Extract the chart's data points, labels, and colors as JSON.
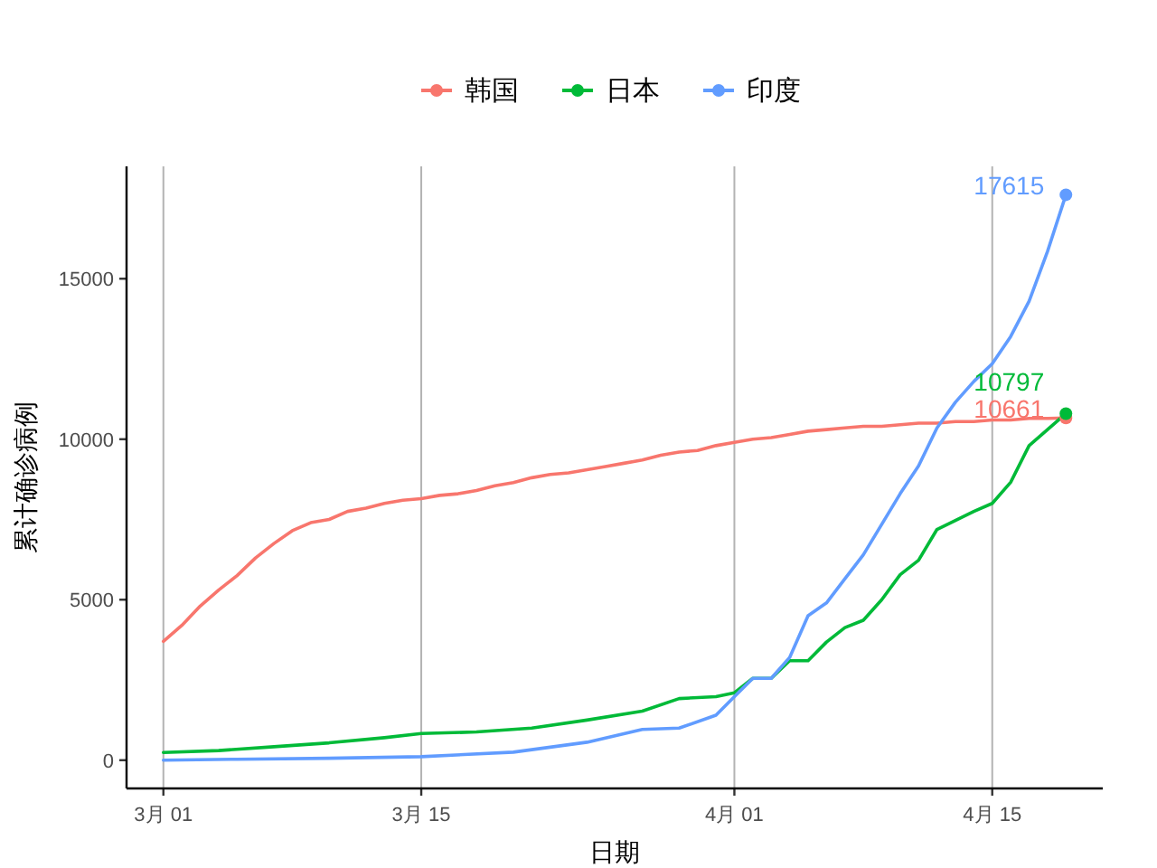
{
  "chart_data": {
    "type": "line",
    "xlabel": "日期",
    "ylabel": "累计确诊病例",
    "legend": "top",
    "grid": "x",
    "xlim": [
      "--02-27",
      "--04-21"
    ],
    "ylim": [
      -880,
      18500
    ],
    "xticks": [
      {
        "value": "--03-01",
        "label": "3月 01"
      },
      {
        "value": "--03-15",
        "label": "3月 15"
      },
      {
        "value": "--04-01",
        "label": "4月 01"
      },
      {
        "value": "--04-15",
        "label": "4月 15"
      }
    ],
    "yticks": [
      0,
      5000,
      10000,
      15000
    ],
    "series": [
      {
        "name": "韩国",
        "color": "#f8766d",
        "x": [
          "--03-01",
          "--03-02",
          "--03-03",
          "--03-04",
          "--03-05",
          "--03-06",
          "--03-07",
          "--03-08",
          "--03-09",
          "--03-10",
          "--03-11",
          "--03-12",
          "--03-13",
          "--03-14",
          "--03-15",
          "--03-16",
          "--03-17",
          "--03-18",
          "--03-19",
          "--03-20",
          "--03-21",
          "--03-22",
          "--03-23",
          "--03-24",
          "--03-25",
          "--03-26",
          "--03-27",
          "--03-28",
          "--03-29",
          "--03-30",
          "--03-31",
          "--04-01",
          "--04-02",
          "--04-03",
          "--04-04",
          "--04-05",
          "--04-06",
          "--04-07",
          "--04-08",
          "--04-09",
          "--04-10",
          "--04-11",
          "--04-12",
          "--04-13",
          "--04-14",
          "--04-15",
          "--04-16",
          "--04-17",
          "--04-18",
          "--04-19"
        ],
        "values": [
          3700,
          4200,
          4800,
          5300,
          5750,
          6300,
          6750,
          7150,
          7400,
          7500,
          7750,
          7850,
          8000,
          8100,
          8150,
          8250,
          8300,
          8400,
          8550,
          8650,
          8800,
          8900,
          8950,
          9050,
          9150,
          9250,
          9350,
          9500,
          9600,
          9650,
          9800,
          9900,
          10000,
          10050,
          10150,
          10250,
          10300,
          10350,
          10400,
          10400,
          10450,
          10500,
          10500,
          10550,
          10550,
          10600,
          10600,
          10650,
          10650,
          10661
        ],
        "value_labels": [
          null,
          null,
          null,
          null,
          null,
          null,
          null,
          null,
          null,
          null,
          null,
          null,
          null,
          null,
          null,
          null,
          null,
          null,
          null,
          null,
          null,
          null,
          null,
          null,
          null,
          null,
          null,
          null,
          null,
          null,
          null,
          null,
          null,
          null,
          null,
          null,
          null,
          null,
          null,
          null,
          null,
          null,
          null,
          null,
          null,
          null,
          null,
          null,
          null,
          "10661"
        ]
      },
      {
        "name": "日本",
        "color": "#00ba38",
        "x": [
          "--03-01",
          "--03-04",
          "--03-07",
          "--03-10",
          "--03-13",
          "--03-15",
          "--03-18",
          "--03-21",
          "--03-24",
          "--03-27",
          "--03-29",
          "--03-31",
          "--04-01",
          "--04-02",
          "--04-03",
          "--04-04",
          "--04-05",
          "--04-06",
          "--04-07",
          "--04-08",
          "--04-09",
          "--04-10",
          "--04-11",
          "--04-12",
          "--04-13",
          "--04-14",
          "--04-15",
          "--04-16",
          "--04-17",
          "--04-18",
          "--04-19"
        ],
        "values": [
          240,
          300,
          420,
          540,
          700,
          830,
          880,
          1000,
          1250,
          1530,
          1920,
          1980,
          2100,
          2550,
          2550,
          3100,
          3100,
          3680,
          4130,
          4360,
          5000,
          5780,
          6230,
          7190,
          7470,
          7750,
          8000,
          8660,
          9800,
          10300,
          10797
        ],
        "value_labels": [
          null,
          null,
          null,
          null,
          null,
          null,
          null,
          null,
          null,
          null,
          null,
          null,
          null,
          null,
          null,
          null,
          null,
          null,
          null,
          null,
          null,
          null,
          null,
          null,
          null,
          null,
          null,
          null,
          null,
          null,
          "10797"
        ]
      },
      {
        "name": "印度",
        "color": "#619cff",
        "x": [
          "--03-01",
          "--03-05",
          "--03-10",
          "--03-15",
          "--03-20",
          "--03-24",
          "--03-27",
          "--03-29",
          "--03-31",
          "--04-01",
          "--04-02",
          "--04-03",
          "--04-04",
          "--04-05",
          "--04-06",
          "--04-07",
          "--04-08",
          "--04-09",
          "--04-10",
          "--04-11",
          "--04-12",
          "--04-13",
          "--04-14",
          "--04-15",
          "--04-16",
          "--04-17",
          "--04-18",
          "--04-19"
        ],
        "values": [
          0,
          30,
          60,
          110,
          250,
          560,
          960,
          1000,
          1400,
          1980,
          2550,
          2550,
          3200,
          4500,
          4900,
          5650,
          6400,
          7350,
          8300,
          9170,
          10350,
          11150,
          11800,
          12350,
          13200,
          14300,
          15850,
          17615
        ],
        "value_labels": [
          null,
          null,
          null,
          null,
          null,
          null,
          null,
          null,
          null,
          null,
          null,
          null,
          null,
          null,
          null,
          null,
          null,
          null,
          null,
          null,
          null,
          null,
          null,
          null,
          null,
          null,
          null,
          "17615"
        ]
      }
    ]
  }
}
